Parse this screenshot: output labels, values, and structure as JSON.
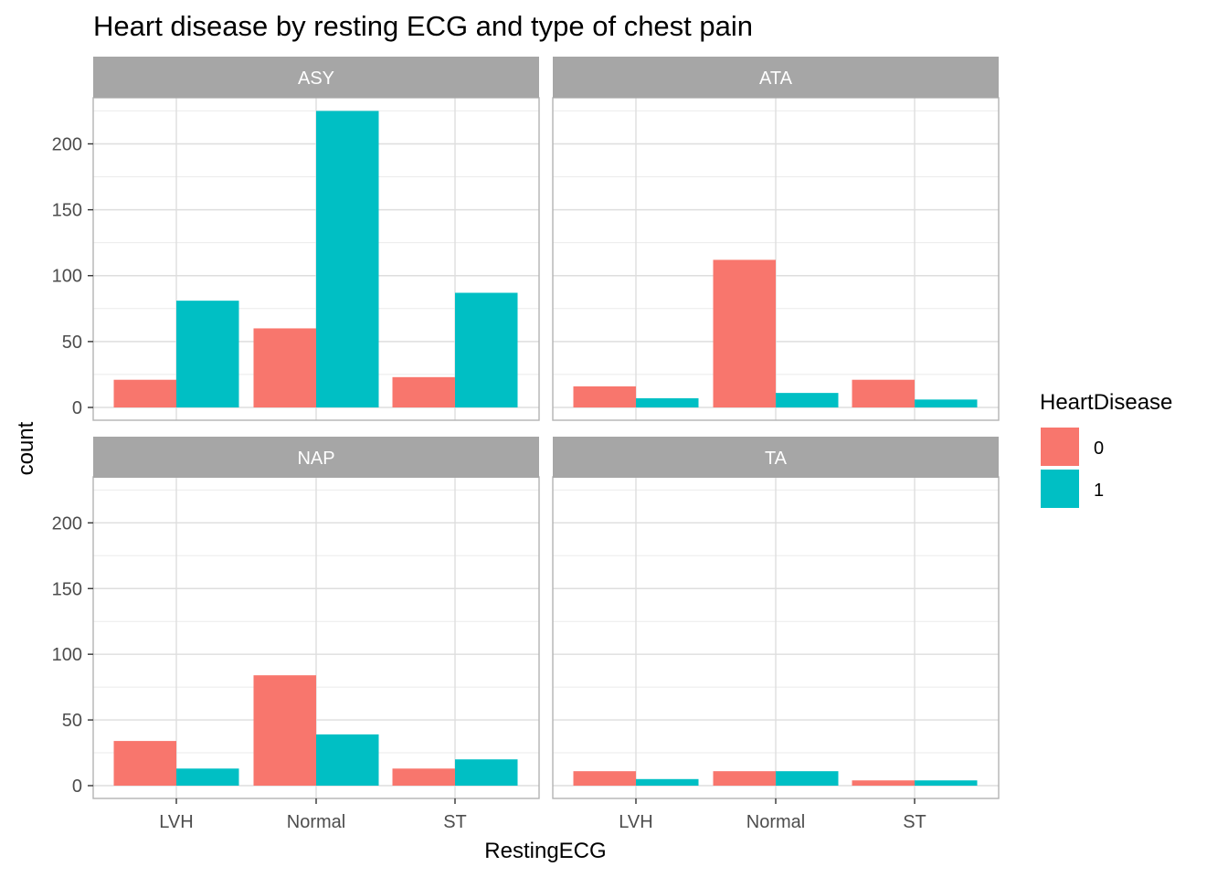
{
  "chart_data": {
    "type": "bar",
    "title": "Heart disease by resting ECG and type of chest pain",
    "xlabel": "RestingECG",
    "ylabel": "count",
    "ylim": [
      0,
      235
    ],
    "y_ticks": [
      0,
      50,
      100,
      150,
      200
    ],
    "grid": true,
    "categories": [
      "LVH",
      "Normal",
      "ST"
    ],
    "legend": {
      "title": "HeartDisease",
      "position": "right",
      "entries": [
        {
          "label": "0",
          "color": "#F8766D"
        },
        {
          "label": "1",
          "color": "#00BFC4"
        }
      ]
    },
    "facets": [
      {
        "label": "ASY",
        "series": [
          {
            "name": "0",
            "values": [
              21,
              60,
              23
            ]
          },
          {
            "name": "1",
            "values": [
              81,
              225,
              87
            ]
          }
        ]
      },
      {
        "label": "ATA",
        "series": [
          {
            "name": "0",
            "values": [
              16,
              112,
              21
            ]
          },
          {
            "name": "1",
            "values": [
              7,
              11,
              6
            ]
          }
        ]
      },
      {
        "label": "NAP",
        "series": [
          {
            "name": "0",
            "values": [
              34,
              84,
              13
            ]
          },
          {
            "name": "1",
            "values": [
              13,
              39,
              20
            ]
          }
        ]
      },
      {
        "label": "TA",
        "series": [
          {
            "name": "0",
            "values": [
              11,
              11,
              4
            ]
          },
          {
            "name": "1",
            "values": [
              5,
              11,
              4
            ]
          }
        ]
      }
    ]
  }
}
